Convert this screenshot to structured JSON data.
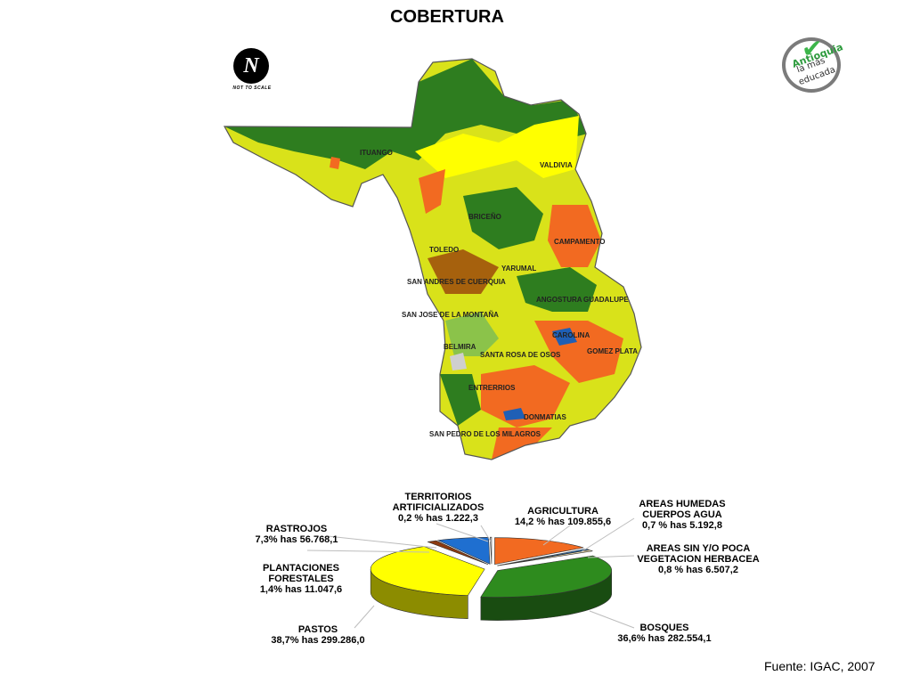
{
  "title": "COBERTURA",
  "north_arrow": {
    "symbol": "N",
    "text": "NOT TO SCALE",
    "icon": "north-arrow-icon"
  },
  "logo": {
    "line1": "Antioquia",
    "line2": "la más",
    "line3": "educada",
    "icon": "check-icon",
    "accent": "#3cb54a"
  },
  "map_labels": {
    "ituango": "ITUANGO",
    "valdivia": "VALDIVIA",
    "briceno": "BRICEÑO",
    "campamento": "CAMPAMENTO",
    "toledo": "TOLEDO",
    "yarumal": "YARUMAL",
    "san_andres": "SAN ANDRES DE CUERQUIA",
    "angostura": "ANGOSTURA",
    "guadalupe": "GUADALUPE",
    "san_jose": "SAN JOSE DE LA MONTAÑA",
    "carolina": "CAROLINA",
    "belmira": "BELMIRA",
    "gomez_plata": "GOMEZ PLATA",
    "santa_rosa": "SANTA ROSA DE OSOS",
    "entrerrios": "ENTRERRIOS",
    "donmatias": "DONMATIAS",
    "san_pedro": "SAN PEDRO DE LOS MILAGROS"
  },
  "chart_data": {
    "type": "pie",
    "title": "",
    "series": [
      {
        "name": "AGRICULTURA",
        "line2": "14,2 % has 109.855,6",
        "percent": 14.2,
        "hectares": 109855.6,
        "color": "#f26a21"
      },
      {
        "name": "AREAS HUMEDAS CUERPOS AGUA",
        "line2": "0,7 % has 5.192,8",
        "percent": 0.7,
        "hectares": 5192.8,
        "color": "#2a6fb5"
      },
      {
        "name": "AREAS SIN Y/O POCA VEGETACION HERBACEA",
        "line2": "0,8 % has 6.507,2",
        "percent": 0.8,
        "hectares": 6507.2,
        "color": "#e8d8a8"
      },
      {
        "name": "BOSQUES",
        "line2": "36,6% has 282.554,1",
        "percent": 36.6,
        "hectares": 282554.1,
        "color": "#2e8b1e"
      },
      {
        "name": "PASTOS",
        "line2": "38,7% has 299.286,0",
        "percent": 38.7,
        "hectares": 299286.0,
        "color": "#ffff00"
      },
      {
        "name": "PLANTACIONES FORESTALES",
        "line2": "1,4% has 11.047,6",
        "percent": 1.4,
        "hectares": 11047.6,
        "color": "#8b3a0f"
      },
      {
        "name": "RASTROJOS",
        "line2": "7,3% has 56.768,1",
        "percent": 7.3,
        "hectares": 56768.1,
        "color": "#1f6fd0"
      },
      {
        "name": "TERRITORIOS ARTIFICIALIZADOS",
        "line2": "0,2 % has 1.222,3",
        "percent": 0.2,
        "hectares": 1222.3,
        "color": "#d9d9d9"
      }
    ]
  },
  "pie_labels": {
    "territorios": {
      "l1": "TERRITORIOS",
      "l2": "ARTIFICIALIZADOS",
      "l3": "0,2 % has 1.222,3"
    },
    "agricultura": {
      "l1": "AGRICULTURA",
      "l2": "14,2 % has 109.855,6"
    },
    "areas_humedas": {
      "l1": "AREAS HUMEDAS",
      "l2": "CUERPOS AGUA",
      "l3": "0,7 % has 5.192,8"
    },
    "areas_sin": {
      "l1": "AREAS SIN Y/O POCA",
      "l2": "VEGETACION HERBACEA",
      "l3": "0,8 % has 6.507,2"
    },
    "rastrojos": {
      "l1": "RASTROJOS",
      "l2": "7,3% has 56.768,1"
    },
    "plantaciones": {
      "l1": "PLANTACIONES",
      "l2": "FORESTALES",
      "l3": "1,4% has 11.047,6"
    },
    "pastos": {
      "l1": "PASTOS",
      "l2": "38,7% has 299.286,0"
    },
    "bosques": {
      "l1": "BOSQUES",
      "l2": "36,6% has 282.554,1"
    }
  },
  "source": "Fuente: IGAC, 2007"
}
